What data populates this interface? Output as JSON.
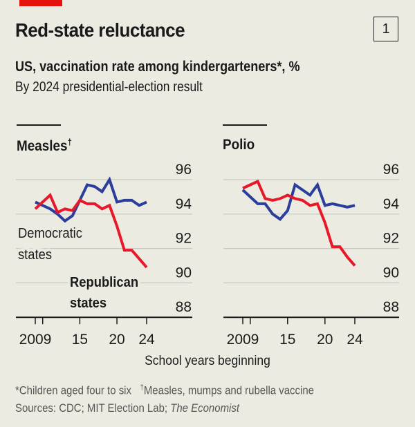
{
  "header": {
    "title": "Red-state reluctance",
    "chart_number": "1",
    "subtitle": "US, vaccination rate among kindergarteners*, %",
    "subtitle2": "By 2024 presidential-election result"
  },
  "colors": {
    "background": "#ecebe1",
    "republican": "#e8182a",
    "democratic": "#2b3e9c",
    "accent_bar": "#e3120b"
  },
  "chart_data": [
    {
      "type": "line",
      "title": "Measles",
      "title_mark": "†",
      "x": [
        2009,
        2010,
        2011,
        2012,
        2013,
        2014,
        2015,
        2016,
        2017,
        2018,
        2019,
        2020,
        2021,
        2022,
        2023,
        2024
      ],
      "xticks": [
        2009,
        2010,
        2015,
        2020,
        2024
      ],
      "xtick_labels": [
        "2009",
        "",
        "15",
        "20",
        "24"
      ],
      "yticks": [
        96,
        94,
        92,
        90,
        88
      ],
      "ytick_labels": [
        "96",
        "94",
        "92",
        "90",
        "88"
      ],
      "ylim": [
        88,
        96.5
      ],
      "grid": true,
      "series": [
        {
          "name": "Democratic states",
          "color": "#2b3e9c",
          "values": [
            94.7,
            94.5,
            94.3,
            94.0,
            93.6,
            93.9,
            94.8,
            95.7,
            95.6,
            95.3,
            96.0,
            94.7,
            94.8,
            94.8,
            94.5,
            94.7
          ]
        },
        {
          "name": "Republican states",
          "color": "#e8182a",
          "values": [
            94.3,
            94.7,
            95.1,
            94.1,
            94.3,
            94.2,
            94.8,
            94.6,
            94.6,
            94.3,
            94.5,
            93.3,
            91.9,
            91.9,
            91.4,
            90.9
          ]
        }
      ],
      "annotations": [
        {
          "lines": [
            "Democratic",
            "states"
          ],
          "weight": "normal"
        },
        {
          "lines": [
            "Republican",
            "states"
          ],
          "weight": "bold"
        }
      ]
    },
    {
      "type": "line",
      "title": "Polio",
      "x": [
        2009,
        2010,
        2011,
        2012,
        2013,
        2014,
        2015,
        2016,
        2017,
        2018,
        2019,
        2020,
        2021,
        2022,
        2023,
        2024
      ],
      "xticks": [
        2009,
        2010,
        2015,
        2020,
        2024
      ],
      "xtick_labels": [
        "2009",
        "",
        "15",
        "20",
        "24"
      ],
      "yticks": [
        96,
        94,
        92,
        90,
        88
      ],
      "ytick_labels": [
        "96",
        "94",
        "92",
        "90",
        "88"
      ],
      "ylim": [
        88,
        96.5
      ],
      "grid": true,
      "series": [
        {
          "name": "Democratic states",
          "color": "#2b3e9c",
          "values": [
            95.4,
            95.0,
            94.6,
            94.6,
            94.0,
            93.7,
            94.2,
            95.7,
            95.4,
            95.1,
            95.7,
            94.5,
            94.6,
            94.5,
            94.4,
            94.5
          ]
        },
        {
          "name": "Republican states",
          "color": "#e8182a",
          "values": [
            95.5,
            95.7,
            95.9,
            94.9,
            94.8,
            94.9,
            95.1,
            94.9,
            94.8,
            94.5,
            94.6,
            93.5,
            92.1,
            92.1,
            91.5,
            91.0
          ]
        }
      ]
    }
  ],
  "xlabel": "School years beginning",
  "footnotes": {
    "note1": "*Children aged four to six",
    "note2_mark": "†",
    "note2": "Measles, mumps and rubella vaccine",
    "sources_prefix": "Sources: CDC; MIT Election Lab; ",
    "sources_italic": "The Economist"
  }
}
